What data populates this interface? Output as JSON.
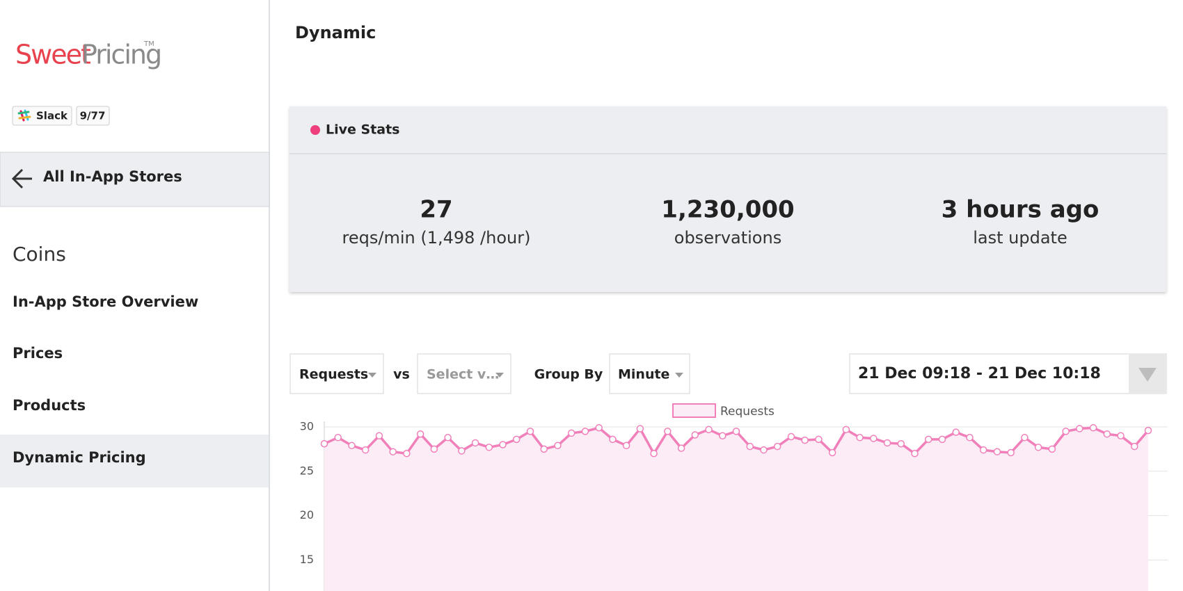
{
  "sidebar": {
    "logo": {
      "sweet": "Sweet",
      "pricing": "Pricing",
      "tm": "TM"
    },
    "badges": [
      "Slack",
      "9/77"
    ],
    "back_link": "All In-App Stores",
    "section": "Coins",
    "nav": [
      "In-App Store Overview",
      "Prices",
      "Products",
      "Dynamic Pricing"
    ]
  },
  "header": {
    "title": "Dynamic"
  },
  "live_stats": {
    "title": "Live Stats",
    "stats": [
      {
        "value": "27",
        "label": "reqs/min (1,498 /hour)"
      },
      {
        "value": "1,230,000",
        "label": "observations"
      },
      {
        "value": "3 hours ago",
        "label": "last update"
      }
    ]
  },
  "controls": {
    "metric": "Requests",
    "vs": "vs",
    "compare": "Select v…",
    "group_by_label": "Group By",
    "group_by": "Minute",
    "date_range": "21 Dec 09:18 - 21 Dec 10:18"
  },
  "chart_data": {
    "type": "line",
    "series": [
      {
        "name": "Requests",
        "color": "#f07fba",
        "values": [
          28.1,
          28.8,
          27.9,
          27.4,
          29.0,
          27.2,
          27.0,
          29.2,
          27.5,
          28.8,
          27.3,
          28.2,
          27.7,
          28.0,
          28.6,
          29.5,
          27.5,
          27.9,
          29.3,
          29.5,
          29.9,
          28.6,
          27.9,
          29.8,
          27.0,
          29.5,
          27.6,
          29.1,
          29.7,
          29.0,
          29.5,
          27.8,
          27.4,
          27.8,
          28.9,
          28.5,
          28.6,
          27.1,
          29.7,
          28.8,
          28.7,
          28.2,
          28.1,
          27.0,
          28.6,
          28.6,
          29.4,
          28.8,
          27.4,
          27.2,
          27.1,
          28.8,
          27.7,
          27.5,
          29.5,
          29.8,
          29.9,
          29.2,
          29.0,
          27.8,
          29.6
        ]
      }
    ],
    "ylim": [
      11.5,
      30
    ],
    "yticks": [
      15,
      20,
      25,
      30
    ],
    "grid": true
  }
}
